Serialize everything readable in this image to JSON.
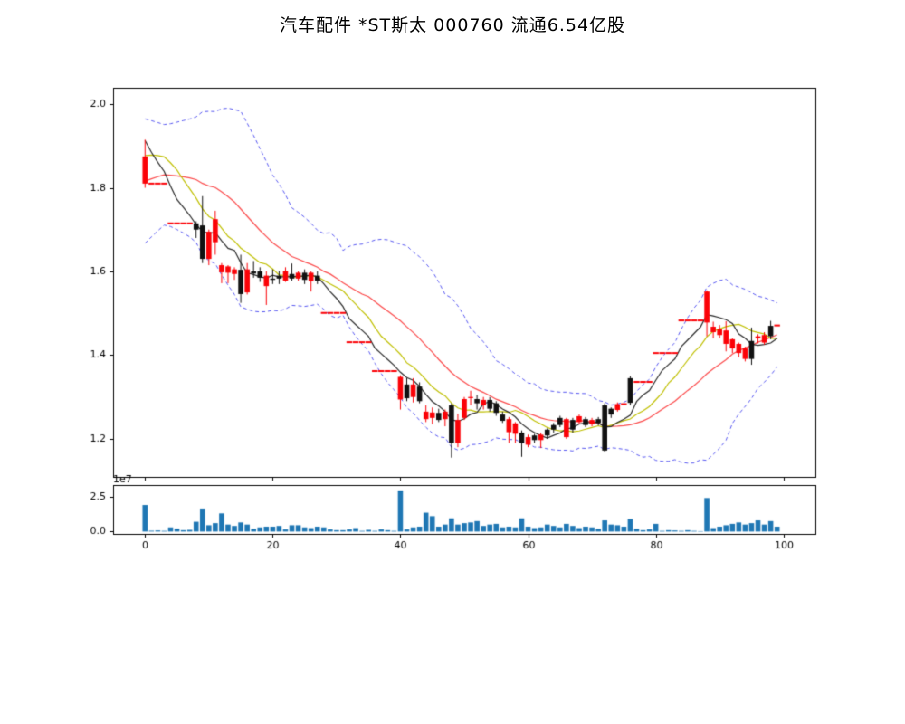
{
  "title": "汽车配件 *ST斯太 000760 流通6.54亿股",
  "chart_data": {
    "type": "candlestick",
    "subtype": "ohlc-with-volume",
    "title": "汽车配件 *ST斯太 000760 流通6.54亿股",
    "x_axis": {
      "ticks": [
        0,
        20,
        40,
        60,
        80,
        100
      ],
      "lim": [
        -5,
        105
      ]
    },
    "main_y_axis": {
      "ticks": [
        2.0,
        1.8,
        1.6,
        1.4,
        1.2
      ],
      "lim": [
        1.109,
        2.039
      ]
    },
    "volume_y_axis": {
      "ticks": [
        0.0,
        2.5
      ],
      "lim": [
        -0.17,
        3.33
      ],
      "offset_label": "1e7",
      "unit": 10000000
    },
    "legend_position": "none",
    "grid": false,
    "series_notes": {
      "ma_fast_window": 5,
      "ma_mid_window": 10,
      "ma_slow_window": 20,
      "boll_window": 20,
      "boll_k": 2,
      "flat_days_meaning": "days where o=h=l=c are suspension/no-range days drawn as red dashes"
    },
    "colors": {
      "up_candle": "#fb0207",
      "down_candle": "#111111",
      "ma_fast": "#2b2b2b",
      "ma_mid": "#bfbf00",
      "ma_slow": "#fb4a4b",
      "band": "#5656f0",
      "volume_bar": "#1f77b4",
      "axis": "#000000",
      "flat_dash": "#fb0207"
    },
    "prehistory_closes": [
      1.7,
      1.7,
      1.71,
      1.72,
      1.73,
      1.75,
      1.76,
      1.77,
      1.78,
      1.81,
      1.82,
      1.8,
      1.82,
      1.84,
      1.86,
      1.885,
      1.95,
      1.93,
      1.92,
      1.89
    ],
    "columns": [
      "open",
      "high",
      "low",
      "close",
      "volume_1e7"
    ],
    "days": [
      [
        1.81,
        1.915,
        1.8,
        1.875,
        1.9
      ],
      [
        1.81,
        1.81,
        1.81,
        1.81,
        0.06
      ],
      [
        1.81,
        1.81,
        1.81,
        1.81,
        0.08
      ],
      [
        1.81,
        1.81,
        1.81,
        1.81,
        0.05
      ],
      [
        1.715,
        1.715,
        1.715,
        1.715,
        0.3
      ],
      [
        1.715,
        1.715,
        1.715,
        1.715,
        0.22
      ],
      [
        1.715,
        1.715,
        1.715,
        1.715,
        0.1
      ],
      [
        1.715,
        1.715,
        1.715,
        1.715,
        0.12
      ],
      [
        1.715,
        1.72,
        1.68,
        1.7,
        0.7
      ],
      [
        1.71,
        1.78,
        1.62,
        1.63,
        1.65
      ],
      [
        1.63,
        1.7,
        1.615,
        1.695,
        0.45
      ],
      [
        1.67,
        1.745,
        1.64,
        1.725,
        0.6
      ],
      [
        1.598,
        1.62,
        1.572,
        1.615,
        1.3
      ],
      [
        1.597,
        1.615,
        1.572,
        1.612,
        0.5
      ],
      [
        1.594,
        1.61,
        1.58,
        1.605,
        0.4
      ],
      [
        1.604,
        1.64,
        1.525,
        1.546,
        0.65
      ],
      [
        1.55,
        1.62,
        1.545,
        1.605,
        0.5
      ],
      [
        1.6,
        1.625,
        1.585,
        1.595,
        0.2
      ],
      [
        1.6,
        1.61,
        1.575,
        1.585,
        0.3
      ],
      [
        1.565,
        1.6,
        1.52,
        1.59,
        0.35
      ],
      [
        1.583,
        1.605,
        1.57,
        1.58,
        0.35
      ],
      [
        1.59,
        1.601,
        1.57,
        1.583,
        0.4
      ],
      [
        1.578,
        1.61,
        1.575,
        1.601,
        0.15
      ],
      [
        1.594,
        1.619,
        1.578,
        1.583,
        0.45
      ],
      [
        1.583,
        1.6,
        1.578,
        1.597,
        0.45
      ],
      [
        1.597,
        1.605,
        1.57,
        1.58,
        0.3
      ],
      [
        1.577,
        1.6,
        1.552,
        1.597,
        0.25
      ],
      [
        1.59,
        1.6,
        1.57,
        1.578,
        0.35
      ],
      [
        1.501,
        1.501,
        1.501,
        1.501,
        0.3
      ],
      [
        1.501,
        1.501,
        1.501,
        1.501,
        0.15
      ],
      [
        1.501,
        1.501,
        1.501,
        1.501,
        0.1
      ],
      [
        1.501,
        1.501,
        1.501,
        1.501,
        0.1
      ],
      [
        1.431,
        1.431,
        1.431,
        1.431,
        0.15
      ],
      [
        1.431,
        1.431,
        1.431,
        1.431,
        0.25
      ],
      [
        1.431,
        1.431,
        1.431,
        1.431,
        0.05
      ],
      [
        1.431,
        1.431,
        1.431,
        1.431,
        0.12
      ],
      [
        1.362,
        1.362,
        1.362,
        1.362,
        0.05
      ],
      [
        1.362,
        1.362,
        1.362,
        1.362,
        0.15
      ],
      [
        1.362,
        1.362,
        1.362,
        1.362,
        0.1
      ],
      [
        1.362,
        1.362,
        1.362,
        1.362,
        0.05
      ],
      [
        1.294,
        1.352,
        1.27,
        1.348,
        2.95
      ],
      [
        1.33,
        1.345,
        1.29,
        1.297,
        0.15
      ],
      [
        1.3,
        1.345,
        1.287,
        1.33,
        0.3
      ],
      [
        1.325,
        1.335,
        1.285,
        1.29,
        0.35
      ],
      [
        1.247,
        1.28,
        1.24,
        1.265,
        1.35
      ],
      [
        1.25,
        1.275,
        1.235,
        1.263,
        1.1
      ],
      [
        1.262,
        1.272,
        1.24,
        1.245,
        0.35
      ],
      [
        1.247,
        1.27,
        1.23,
        1.265,
        0.5
      ],
      [
        1.28,
        1.285,
        1.155,
        1.19,
        0.95
      ],
      [
        1.19,
        1.26,
        1.18,
        1.245,
        0.5
      ],
      [
        1.25,
        1.3,
        1.245,
        1.295,
        0.6
      ],
      [
        1.3,
        1.315,
        1.28,
        1.3,
        0.65
      ],
      [
        1.295,
        1.305,
        1.27,
        1.285,
        0.75
      ],
      [
        1.28,
        1.3,
        1.27,
        1.293,
        0.4
      ],
      [
        1.293,
        1.3,
        1.265,
        1.272,
        0.5
      ],
      [
        1.285,
        1.29,
        1.255,
        1.262,
        0.55
      ],
      [
        1.258,
        1.265,
        1.238,
        1.243,
        0.3
      ],
      [
        1.216,
        1.252,
        1.19,
        1.247,
        0.35
      ],
      [
        1.212,
        1.24,
        1.19,
        1.237,
        0.3
      ],
      [
        1.215,
        1.22,
        1.157,
        1.19,
        0.95
      ],
      [
        1.186,
        1.21,
        1.18,
        1.204,
        0.35
      ],
      [
        1.208,
        1.212,
        1.19,
        1.197,
        0.25
      ],
      [
        1.197,
        1.215,
        1.178,
        1.21,
        0.3
      ],
      [
        1.222,
        1.225,
        1.2,
        1.208,
        0.5
      ],
      [
        1.233,
        1.238,
        1.215,
        1.222,
        0.4
      ],
      [
        1.25,
        1.255,
        1.228,
        1.233,
        0.3
      ],
      [
        1.204,
        1.25,
        1.2,
        1.247,
        0.55
      ],
      [
        1.245,
        1.25,
        1.215,
        1.222,
        0.4
      ],
      [
        1.24,
        1.258,
        1.235,
        1.254,
        0.25
      ],
      [
        1.247,
        1.252,
        1.228,
        1.233,
        0.35
      ],
      [
        1.235,
        1.25,
        1.23,
        1.245,
        0.3
      ],
      [
        1.247,
        1.252,
        1.232,
        1.238,
        0.2
      ],
      [
        1.28,
        1.285,
        1.168,
        1.172,
        0.8
      ],
      [
        1.272,
        1.275,
        1.25,
        1.258,
        0.5
      ],
      [
        1.269,
        1.287,
        1.265,
        1.283,
        0.45
      ],
      [
        1.283,
        1.283,
        1.283,
        1.283,
        0.35
      ],
      [
        1.345,
        1.35,
        1.28,
        1.286,
        0.9
      ],
      [
        1.336,
        1.336,
        1.336,
        1.336,
        0.2
      ],
      [
        1.336,
        1.336,
        1.336,
        1.336,
        0.1
      ],
      [
        1.336,
        1.336,
        1.336,
        1.336,
        0.15
      ],
      [
        1.405,
        1.405,
        1.405,
        1.405,
        0.55
      ],
      [
        1.405,
        1.405,
        1.405,
        1.405,
        0.05
      ],
      [
        1.405,
        1.405,
        1.405,
        1.405,
        0.1
      ],
      [
        1.405,
        1.405,
        1.405,
        1.405,
        0.08
      ],
      [
        1.483,
        1.483,
        1.483,
        1.483,
        0.05
      ],
      [
        1.483,
        1.483,
        1.483,
        1.483,
        0.1
      ],
      [
        1.483,
        1.483,
        1.483,
        1.483,
        0.05
      ],
      [
        1.483,
        1.483,
        1.483,
        1.483,
        0.03
      ],
      [
        1.478,
        1.555,
        1.445,
        1.552,
        2.4
      ],
      [
        1.455,
        1.48,
        1.44,
        1.468,
        0.25
      ],
      [
        1.448,
        1.472,
        1.44,
        1.462,
        0.35
      ],
      [
        1.427,
        1.481,
        1.409,
        1.459,
        0.45
      ],
      [
        1.416,
        1.44,
        1.405,
        1.438,
        0.55
      ],
      [
        1.405,
        1.43,
        1.395,
        1.427,
        0.65
      ],
      [
        1.391,
        1.42,
        1.385,
        1.416,
        0.5
      ],
      [
        1.434,
        1.466,
        1.377,
        1.391,
        0.6
      ],
      [
        1.44,
        1.45,
        1.428,
        1.445,
        0.8
      ],
      [
        1.43,
        1.455,
        1.425,
        1.448,
        0.5
      ],
      [
        1.47,
        1.482,
        1.438,
        1.445,
        0.75
      ],
      [
        1.471,
        1.471,
        1.471,
        1.471,
        0.35
      ]
    ]
  }
}
